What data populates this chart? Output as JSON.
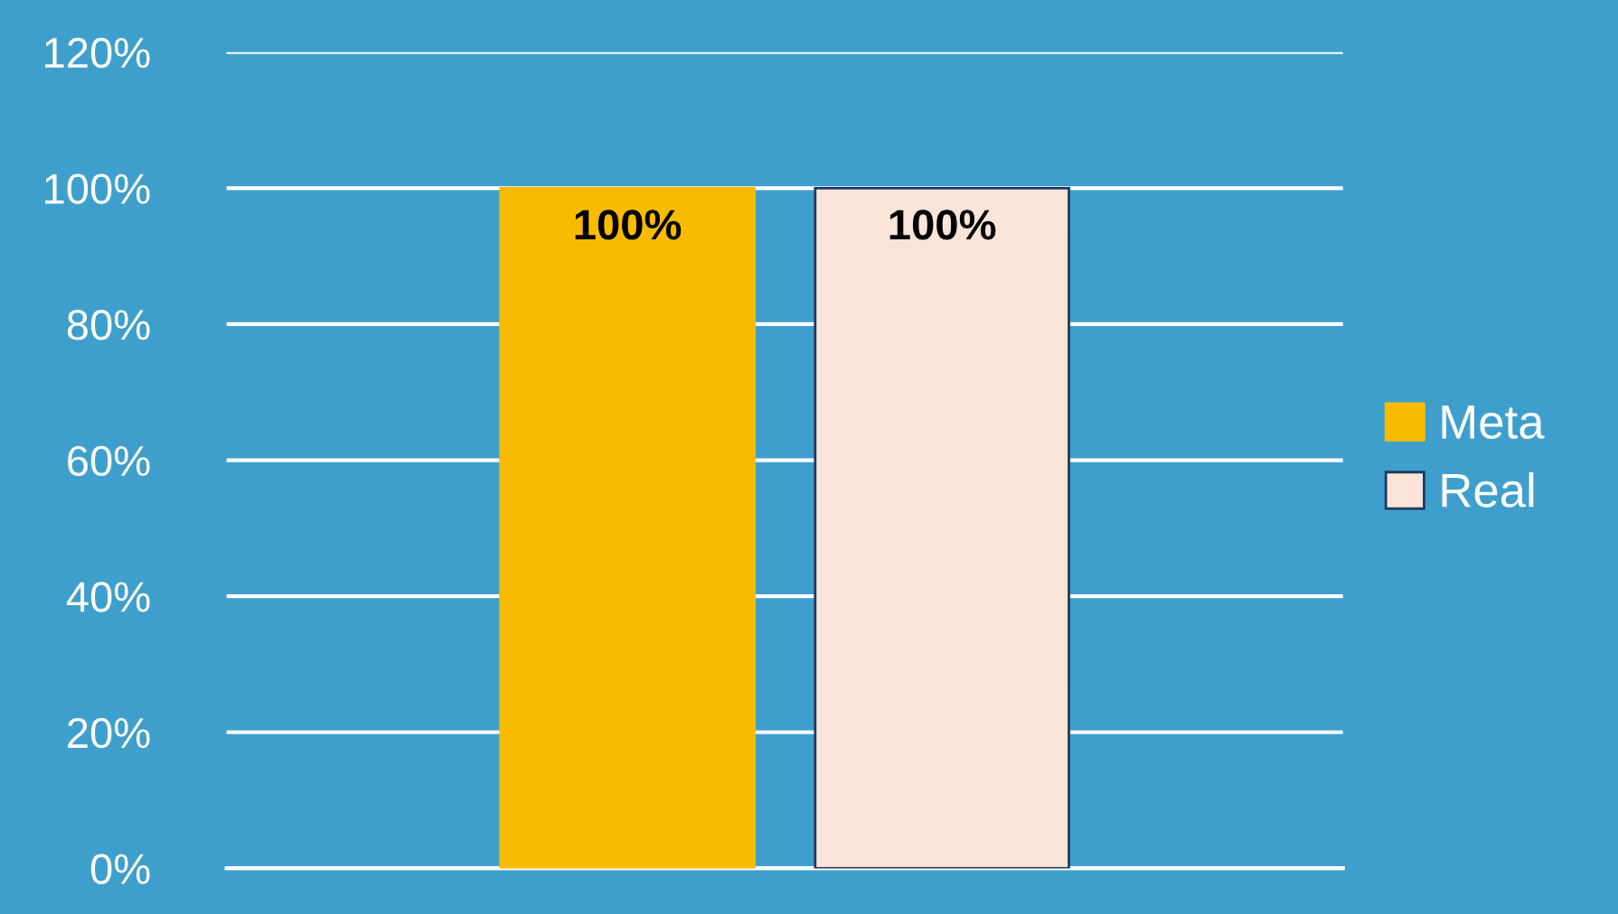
{
  "chart_data": {
    "type": "bar",
    "categories": [
      null
    ],
    "series": [
      {
        "name": "Meta",
        "color": "#f9bb00",
        "values": [
          100
        ],
        "value_labels": [
          "100%"
        ]
      },
      {
        "name": "Real",
        "color": "#fae4d8",
        "values": [
          100
        ],
        "value_labels": [
          "100%"
        ]
      }
    ],
    "ylim": [
      0,
      120
    ],
    "yticks": [
      {
        "value": 0,
        "label": "0%"
      },
      {
        "value": 20,
        "label": "20%"
      },
      {
        "value": 40,
        "label": "40%"
      },
      {
        "value": 60,
        "label": "60%"
      },
      {
        "value": 80,
        "label": "80%"
      },
      {
        "value": 100,
        "label": "100%"
      },
      {
        "value": 120,
        "label": "120%"
      }
    ],
    "grid": "y",
    "legend": "right"
  }
}
